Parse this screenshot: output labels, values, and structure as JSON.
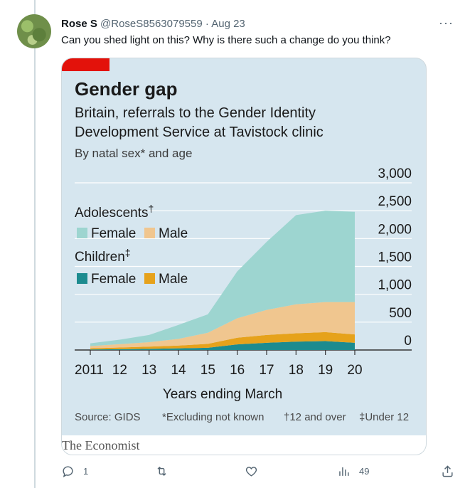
{
  "tweet": {
    "display_name": "Rose S",
    "handle": "@RoseS8563079559",
    "separator": "·",
    "date": "Aug 23",
    "text": "Can you shed light on this? Why is there such a change do you think?",
    "more_glyph": "···"
  },
  "chart_data": {
    "type": "area",
    "title": "Gender gap",
    "subtitle_line1": "Britain, referrals to the Gender Identity",
    "subtitle_line2": "Development Service at Tavistock clinic",
    "subtitle_line3": "By natal sex* and age",
    "xlabel": "Years ending March",
    "x_tick_labels": [
      "2011",
      "12",
      "13",
      "14",
      "15",
      "16",
      "17",
      "18",
      "19",
      "20"
    ],
    "y_tick_labels": [
      "0",
      "500",
      "1,000",
      "1,500",
      "2,000",
      "2,500",
      "3,000"
    ],
    "ylim": [
      0,
      3000
    ],
    "stacked": true,
    "x": [
      2011,
      2012,
      2013,
      2014,
      2015,
      2016,
      2017,
      2018,
      2019,
      2020
    ],
    "series": [
      {
        "name": "Female",
        "group": "Children",
        "color": "#1c8b8f",
        "values": [
          10,
          15,
          20,
          30,
          40,
          100,
          130,
          150,
          160,
          130
        ]
      },
      {
        "name": "Male",
        "group": "Children",
        "color": "#e6a21b",
        "values": [
          20,
          30,
          40,
          50,
          70,
          120,
          140,
          150,
          160,
          150
        ]
      },
      {
        "name": "Male",
        "group": "Adolescents",
        "color": "#f0c68f",
        "values": [
          40,
          60,
          80,
          120,
          200,
          350,
          450,
          520,
          540,
          580
        ]
      },
      {
        "name": "Female",
        "group": "Adolescents",
        "color": "#9dd5d0",
        "values": [
          50,
          80,
          130,
          250,
          330,
          840,
          1220,
          1600,
          1640,
          1620
        ]
      }
    ],
    "legend": {
      "adolescents_label": "Adolescents",
      "adolescents_mark": "†",
      "children_label": "Children",
      "children_mark": "‡",
      "female_label": "Female",
      "male_label": "Male",
      "placement": "top-left"
    },
    "source": "Source: GIDS",
    "footnote1": "*Excluding not known",
    "footnote2": "†12 and over",
    "footnote3": "‡Under 12",
    "brand_color": "#e3120b",
    "background": "#d6e6ef"
  },
  "publisher": "The Economist",
  "actions": {
    "replies": "1",
    "retweets": "",
    "likes": "",
    "views": "49"
  }
}
